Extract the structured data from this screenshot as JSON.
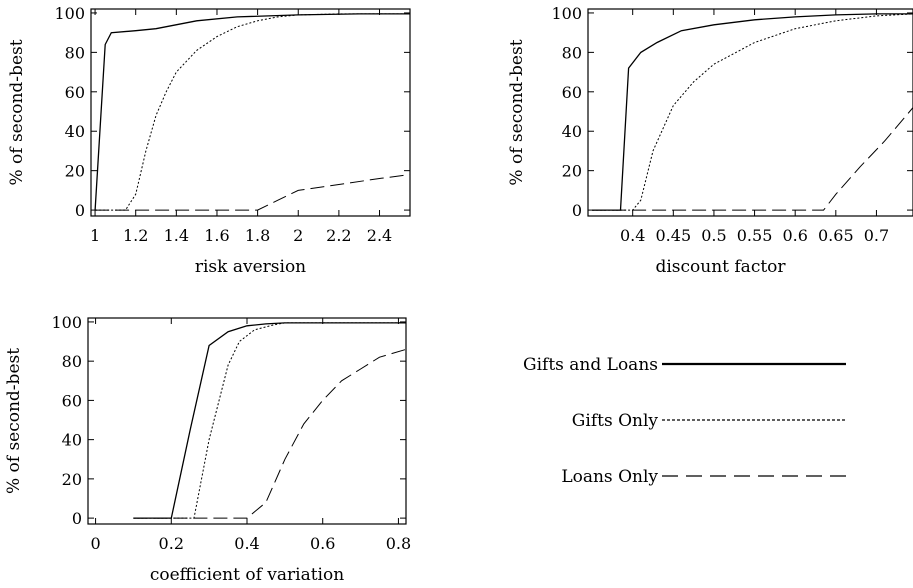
{
  "legend": {
    "entries": [
      {
        "label": "Gifts  and Loans",
        "style": "solid"
      },
      {
        "label": "Gifts  Only",
        "style": "dotted"
      },
      {
        "label": "Loans  Only",
        "style": "dashed"
      }
    ]
  },
  "chart_data": [
    {
      "type": "line",
      "xlabel": "risk  aversion",
      "ylabel": "% of second-best",
      "xlim": [
        0.98,
        2.55
      ],
      "ylim": [
        -3,
        102
      ],
      "xticks": [
        1,
        1.2,
        1.4,
        1.6,
        1.8,
        2,
        2.2,
        2.4
      ],
      "xtick_labels": [
        "1",
        "1.2",
        "1.4",
        "1.6",
        "1.8",
        "2",
        "2.2",
        "2.4"
      ],
      "yticks": [
        0,
        20,
        40,
        60,
        80,
        100
      ],
      "ytick_labels": [
        "0",
        "20",
        "40",
        "60",
        "80",
        "100"
      ],
      "series": [
        {
          "name": "Gifts  and Loans",
          "style": "solid",
          "x": [
            1.0,
            1.05,
            1.08,
            1.2,
            1.3,
            1.5,
            1.7,
            2.0,
            2.3,
            2.55
          ],
          "y": [
            0,
            84,
            90,
            91,
            92,
            96,
            98,
            99,
            99.5,
            99.5
          ]
        },
        {
          "name": "Gifts  Only",
          "style": "dotted",
          "x": [
            1.0,
            1.15,
            1.2,
            1.25,
            1.3,
            1.35,
            1.4,
            1.5,
            1.6,
            1.7,
            1.8,
            1.9,
            2.0,
            2.2,
            2.55
          ],
          "y": [
            0,
            0,
            8,
            30,
            48,
            60,
            70,
            81,
            88,
            93,
            96,
            98,
            99,
            99.5,
            99.5
          ]
        },
        {
          "name": "Loans  Only",
          "style": "dashed",
          "x": [
            1.0,
            1.8,
            1.9,
            2.0,
            2.2,
            2.4,
            2.55
          ],
          "y": [
            0,
            0,
            5,
            10,
            13,
            16,
            18
          ]
        }
      ]
    },
    {
      "type": "line",
      "xlabel": "discount  factor",
      "ylabel": "% of second-best",
      "xlim": [
        0.345,
        0.745
      ],
      "ylim": [
        -3,
        102
      ],
      "xticks": [
        0.4,
        0.45,
        0.5,
        0.55,
        0.6,
        0.65,
        0.7
      ],
      "xtick_labels": [
        "0.4",
        "0.45",
        "0.5",
        "0.55",
        "0.6",
        "0.65",
        "0.7"
      ],
      "yticks": [
        0,
        20,
        40,
        60,
        80,
        100
      ],
      "ytick_labels": [
        "0",
        "20",
        "40",
        "60",
        "80",
        "100"
      ],
      "series": [
        {
          "name": "Gifts  and Loans",
          "style": "solid",
          "x": [
            0.35,
            0.385,
            0.395,
            0.41,
            0.43,
            0.46,
            0.5,
            0.55,
            0.6,
            0.65,
            0.7,
            0.745
          ],
          "y": [
            0,
            0,
            72,
            80,
            85,
            91,
            94,
            96.5,
            98,
            99,
            99.5,
            99.5
          ]
        },
        {
          "name": "Gifts  Only",
          "style": "dotted",
          "x": [
            0.35,
            0.4,
            0.41,
            0.425,
            0.45,
            0.475,
            0.5,
            0.55,
            0.6,
            0.65,
            0.7,
            0.745
          ],
          "y": [
            0,
            0,
            5,
            30,
            53,
            65,
            74,
            85,
            92,
            96,
            98.5,
            99.5
          ]
        },
        {
          "name": "Loans  Only",
          "style": "dashed",
          "x": [
            0.35,
            0.635,
            0.65,
            0.68,
            0.71,
            0.745
          ],
          "y": [
            0,
            0,
            8,
            22,
            35,
            52
          ]
        }
      ]
    },
    {
      "type": "line",
      "xlabel": "coefficient   of variation",
      "ylabel": "% of second-best",
      "xlim": [
        -0.02,
        0.82
      ],
      "ylim": [
        -3,
        102
      ],
      "xticks": [
        0,
        0.2,
        0.4,
        0.6,
        0.8
      ],
      "xtick_labels": [
        "0",
        "0.2",
        "0.4",
        "0.6",
        "0.8"
      ],
      "yticks": [
        0,
        20,
        40,
        60,
        80,
        100
      ],
      "ytick_labels": [
        "0",
        "20",
        "40",
        "60",
        "80",
        "100"
      ],
      "series": [
        {
          "name": "Gifts  and Loans",
          "style": "solid",
          "x": [
            0.1,
            0.2,
            0.25,
            0.3,
            0.35,
            0.4,
            0.45,
            0.5,
            0.82
          ],
          "y": [
            0,
            0,
            45,
            88,
            95,
            98,
            99,
            99.5,
            99.5
          ]
        },
        {
          "name": "Gifts  Only",
          "style": "dotted",
          "x": [
            0.1,
            0.26,
            0.3,
            0.35,
            0.38,
            0.42,
            0.47,
            0.5,
            0.82
          ],
          "y": [
            0,
            0,
            40,
            78,
            90,
            96,
            98.5,
            99.5,
            99.5
          ]
        },
        {
          "name": "Loans  Only",
          "style": "dashed",
          "x": [
            0.1,
            0.4,
            0.45,
            0.5,
            0.55,
            0.6,
            0.65,
            0.7,
            0.75,
            0.82
          ],
          "y": [
            0,
            0,
            8,
            30,
            48,
            60,
            70,
            76,
            82,
            86
          ]
        }
      ]
    }
  ]
}
